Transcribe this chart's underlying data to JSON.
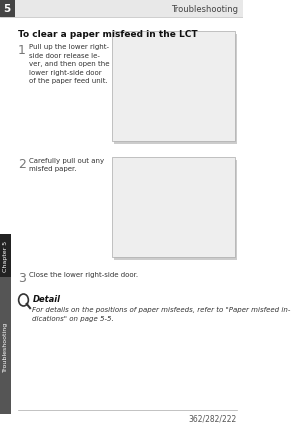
{
  "page_bg": "#ffffff",
  "header_bg": "#e8e8e8",
  "header_num": "5",
  "header_title": "Troubleshooting",
  "section_title": "To clear a paper misfeed in the LCT",
  "steps": [
    {
      "num": "1",
      "text": "Pull up the lower right-\nside door release le-\nver, and then open the\nlower right-side door\nof the paper feed unit."
    },
    {
      "num": "2",
      "text": "Carefully pull out any\nmisfed paper."
    },
    {
      "num": "3",
      "text": "Close the lower right-side door."
    }
  ],
  "detail_title": "Detail",
  "detail_text": "For details on the positions of paper misfeeds, refer to \"Paper misfeed in-\ndications\" on page 5-5.",
  "footer_text": "362/282/222",
  "sidebar_chapter": "Chapter 5",
  "sidebar_trouble": "Troubleshooting",
  "sidebar_chapter_color": "#222222",
  "sidebar_trouble_color": "#555555",
  "sidebar_text_color": "#ffffff",
  "footer_line_color": "#aaaaaa"
}
